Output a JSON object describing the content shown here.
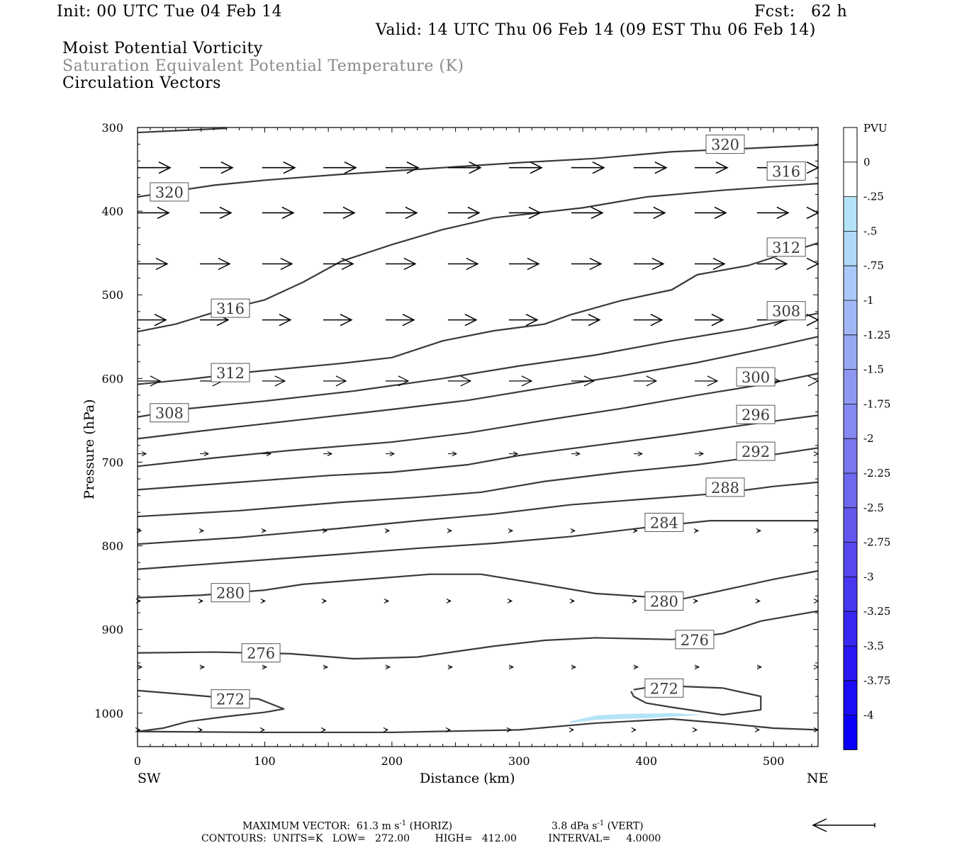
{
  "header": {
    "init": "Init: 00 UTC Tue 04 Feb 14",
    "fcst": "Fcst:   62 h",
    "valid": "Valid: 14 UTC Thu 06 Feb 14 (09 EST Thu 06 Feb 14)",
    "line1": "Moist Potential Vorticity",
    "line2": "Saturation Equivalent Potential Temperature (K)",
    "line3": "Circulation Vectors"
  },
  "colorbar": {
    "title": "PVU",
    "labels": [
      "0",
      "-.25",
      "-.5",
      "-.75",
      "-1",
      "-1.25",
      "-1.5",
      "-1.75",
      "-2",
      "-2.25",
      "-2.5",
      "-2.75",
      "-3",
      "-3.25",
      "-3.5",
      "-3.75",
      "-4"
    ],
    "colors": [
      "#ffffff",
      "#ffffff",
      "#b4e4f8",
      "#b0d8f8",
      "#aac8f8",
      "#a2b8f6",
      "#98a8f4",
      "#8e98f2",
      "#8488f0",
      "#7a78ee",
      "#6e68ee",
      "#6258ee",
      "#5448ee",
      "#4638f0",
      "#3828f2",
      "#2a18f4",
      "#1a0cf6",
      "#0a00f8"
    ]
  },
  "footer": {
    "max_vector": "MAXIMUM VECTOR:  61.3 m s",
    "max_vector_exp": "-1",
    "max_vector_horiz": " (HORIZ)",
    "vert": "3.8 dPa s",
    "vert_exp": "-1",
    "vert_tail": " (VERT)",
    "contours": "CONTOURS:  UNITS=K   LOW=   272.00        HIGH=   412.00          INTERVAL=     4.0000"
  },
  "chart_data": {
    "type": "line",
    "xlabel": "Distance (km)",
    "ylabel": "Pressure (hPa)",
    "xlim": [
      0,
      535
    ],
    "ylim": [
      300,
      1040
    ],
    "y_scale": "linear (inverted)",
    "x_ticks": [
      0,
      100,
      200,
      300,
      400,
      500
    ],
    "y_ticks": [
      300,
      400,
      500,
      600,
      700,
      800,
      900,
      1000
    ],
    "x_tick_labels": [
      "0",
      "100",
      "200",
      "300",
      "400",
      "500"
    ],
    "y_tick_labels": [
      "300",
      "400",
      "500",
      "600",
      "700",
      "800",
      "900",
      "1000"
    ],
    "left_end_label": "SW",
    "right_end_label": "NE",
    "grid": false,
    "contours": [
      {
        "level": 320,
        "points": [
          [
            0,
            306
          ],
          [
            70,
            301
          ]
        ]
      },
      {
        "level": 320,
        "points": [
          [
            0,
            383
          ],
          [
            25,
            377
          ],
          [
            60,
            369
          ],
          [
            100,
            363
          ],
          [
            160,
            356
          ],
          [
            230,
            349
          ],
          [
            300,
            342
          ],
          [
            360,
            337
          ],
          [
            420,
            329
          ],
          [
            480,
            325
          ],
          [
            535,
            321
          ]
        ]
      },
      {
        "level": 316,
        "points": [
          [
            0,
            544
          ],
          [
            30,
            535
          ],
          [
            60,
            521
          ],
          [
            100,
            506
          ],
          [
            130,
            485
          ],
          [
            160,
            460
          ],
          [
            200,
            440
          ],
          [
            240,
            422
          ],
          [
            280,
            408
          ],
          [
            350,
            396
          ],
          [
            400,
            383
          ],
          [
            460,
            375
          ],
          [
            535,
            367
          ]
        ]
      },
      {
        "level": 312,
        "points": [
          [
            0,
            607
          ],
          [
            40,
            601
          ],
          [
            90,
            592
          ],
          [
            160,
            582
          ],
          [
            200,
            575
          ],
          [
            240,
            555
          ],
          [
            280,
            543
          ],
          [
            320,
            535
          ],
          [
            340,
            524
          ],
          [
            380,
            507
          ],
          [
            420,
            494
          ],
          [
            440,
            476
          ],
          [
            480,
            465
          ],
          [
            535,
            438
          ]
        ]
      },
      {
        "level": 308,
        "points": [
          [
            0,
            646
          ],
          [
            40,
            636
          ],
          [
            100,
            627
          ],
          [
            170,
            615
          ],
          [
            240,
            600
          ],
          [
            300,
            585
          ],
          [
            360,
            572
          ],
          [
            420,
            555
          ],
          [
            480,
            540
          ],
          [
            535,
            522
          ]
        ]
      },
      {
        "level": 304,
        "points": [
          [
            0,
            672
          ],
          [
            60,
            661
          ],
          [
            130,
            649
          ],
          [
            200,
            637
          ],
          [
            260,
            626
          ],
          [
            320,
            611
          ],
          [
            380,
            597
          ],
          [
            440,
            581
          ],
          [
            500,
            562
          ],
          [
            535,
            550
          ]
        ]
      },
      {
        "level": 300,
        "points": [
          [
            0,
            705
          ],
          [
            60,
            695
          ],
          [
            120,
            686
          ],
          [
            200,
            676
          ],
          [
            260,
            665
          ],
          [
            320,
            650
          ],
          [
            380,
            636
          ],
          [
            440,
            620
          ],
          [
            500,
            605
          ],
          [
            535,
            594
          ]
        ]
      },
      {
        "level": 296,
        "points": [
          [
            0,
            733
          ],
          [
            80,
            724
          ],
          [
            150,
            716
          ],
          [
            200,
            712
          ],
          [
            260,
            703
          ],
          [
            300,
            692
          ],
          [
            360,
            680
          ],
          [
            420,
            668
          ],
          [
            480,
            655
          ],
          [
            535,
            644
          ]
        ]
      },
      {
        "level": 292,
        "points": [
          [
            0,
            765
          ],
          [
            80,
            758
          ],
          [
            160,
            748
          ],
          [
            220,
            742
          ],
          [
            270,
            736
          ],
          [
            320,
            723
          ],
          [
            380,
            712
          ],
          [
            440,
            703
          ],
          [
            500,
            691
          ],
          [
            535,
            683
          ]
        ]
      },
      {
        "level": 288,
        "points": [
          [
            0,
            798
          ],
          [
            80,
            790
          ],
          [
            160,
            779
          ],
          [
            220,
            770
          ],
          [
            280,
            762
          ],
          [
            340,
            751
          ],
          [
            400,
            744
          ],
          [
            460,
            737
          ],
          [
            500,
            729
          ],
          [
            535,
            724
          ]
        ]
      },
      {
        "level": 284,
        "points": [
          [
            0,
            828
          ],
          [
            80,
            819
          ],
          [
            160,
            810
          ],
          [
            220,
            803
          ],
          [
            280,
            797
          ],
          [
            340,
            789
          ],
          [
            400,
            778
          ],
          [
            450,
            770
          ],
          [
            535,
            770
          ]
        ]
      },
      {
        "level": 280,
        "points": [
          [
            0,
            862
          ],
          [
            50,
            859
          ],
          [
            100,
            853
          ],
          [
            130,
            846
          ],
          [
            180,
            840
          ],
          [
            230,
            834
          ],
          [
            270,
            834
          ],
          [
            310,
            844
          ],
          [
            360,
            857
          ],
          [
            400,
            861
          ],
          [
            430,
            863
          ],
          [
            470,
            850
          ],
          [
            500,
            840
          ],
          [
            535,
            830
          ]
        ]
      },
      {
        "level": 276,
        "points": [
          [
            0,
            928
          ],
          [
            60,
            927
          ],
          [
            120,
            929
          ],
          [
            170,
            935
          ],
          [
            220,
            933
          ],
          [
            280,
            920
          ],
          [
            320,
            913
          ],
          [
            360,
            910
          ],
          [
            420,
            912
          ],
          [
            460,
            905
          ],
          [
            490,
            890
          ],
          [
            535,
            878
          ]
        ]
      },
      {
        "level": 272,
        "points": [
          [
            0,
            973
          ],
          [
            40,
            978
          ],
          [
            70,
            982
          ],
          [
            95,
            983
          ],
          [
            115,
            995
          ],
          [
            100,
            999
          ],
          [
            70,
            1004
          ],
          [
            40,
            1010
          ],
          [
            20,
            1018
          ],
          [
            0,
            1022
          ]
        ]
      },
      {
        "level": 272,
        "points": [
          [
            390,
            972
          ],
          [
            410,
            967
          ],
          [
            460,
            970
          ],
          [
            490,
            980
          ],
          [
            490,
            996
          ],
          [
            460,
            1002
          ],
          [
            420,
            993
          ],
          [
            400,
            988
          ],
          [
            390,
            980
          ],
          [
            388,
            974
          ]
        ]
      },
      {
        "level": 0,
        "points": [
          [
            0,
            1022
          ],
          [
            100,
            1023
          ],
          [
            200,
            1023
          ],
          [
            300,
            1020
          ],
          [
            360,
            1012
          ],
          [
            420,
            1007
          ],
          [
            460,
            1012
          ],
          [
            500,
            1018
          ],
          [
            535,
            1020
          ]
        ]
      }
    ],
    "contour_labels": [
      {
        "text": "320",
        "x": 25,
        "p": 377
      },
      {
        "text": "320",
        "x": 462,
        "p": 320
      },
      {
        "text": "316",
        "x": 510,
        "p": 352
      },
      {
        "text": "316",
        "x": 73,
        "p": 516
      },
      {
        "text": "312",
        "x": 510,
        "p": 443
      },
      {
        "text": "312",
        "x": 73,
        "p": 593
      },
      {
        "text": "308",
        "x": 510,
        "p": 519
      },
      {
        "text": "308",
        "x": 25,
        "p": 641
      },
      {
        "text": "300",
        "x": 486,
        "p": 598
      },
      {
        "text": "296",
        "x": 486,
        "p": 643
      },
      {
        "text": "292",
        "x": 486,
        "p": 687
      },
      {
        "text": "288",
        "x": 462,
        "p": 730
      },
      {
        "text": "284",
        "x": 414,
        "p": 772
      },
      {
        "text": "280",
        "x": 73,
        "p": 856
      },
      {
        "text": "280",
        "x": 414,
        "p": 866
      },
      {
        "text": "276",
        "x": 97,
        "p": 928
      },
      {
        "text": "276",
        "x": 438,
        "p": 912
      },
      {
        "text": "272",
        "x": 73,
        "p": 983
      },
      {
        "text": "272",
        "x": 414,
        "p": 970
      }
    ],
    "negative_pv_region": {
      "level": -0.25,
      "points": [
        [
          340,
          1010
        ],
        [
          360,
          1003
        ],
        [
          380,
          1001
        ],
        [
          420,
          1000
        ],
        [
          445,
          1002
        ],
        [
          400,
          1006
        ],
        [
          360,
          1008
        ],
        [
          340,
          1012
        ]
      ]
    },
    "vector_rows": [
      {
        "p": 348,
        "xs": [
          0,
          49,
          98,
          146,
          195,
          244,
          292,
          341,
          390,
          438,
          487,
          535
        ],
        "len": 46,
        "w": 1.6
      },
      {
        "p": 402,
        "xs": [
          0,
          49,
          98,
          146,
          195,
          244,
          292,
          341,
          390,
          438,
          487,
          535
        ],
        "len": 44,
        "w": 1.6
      },
      {
        "p": 463,
        "xs": [
          0,
          49,
          98,
          146,
          195,
          244,
          292,
          341,
          390,
          438,
          487,
          535
        ],
        "len": 42,
        "w": 1.5
      },
      {
        "p": 530,
        "xs": [
          0,
          49,
          98,
          146,
          195,
          244,
          292,
          341,
          390,
          438,
          487,
          535
        ],
        "len": 40,
        "w": 1.5
      },
      {
        "p": 603,
        "xs": [
          0,
          49,
          98,
          146,
          195,
          244,
          292,
          341,
          390,
          438,
          487,
          535
        ],
        "len": 32,
        "w": 1.2
      },
      {
        "p": 690,
        "xs": [
          0,
          49,
          98,
          146,
          195,
          244,
          292,
          341,
          390,
          438,
          487,
          535
        ],
        "len": 12,
        "w": 1.0
      },
      {
        "p": 782,
        "xs": [
          0,
          49,
          98,
          146,
          195,
          244,
          292,
          341,
          390,
          438,
          487,
          535
        ],
        "len": 5,
        "w": 1.0
      },
      {
        "p": 866,
        "xs": [
          0,
          49,
          98,
          146,
          195,
          244,
          292,
          341,
          390,
          438,
          487,
          535
        ],
        "len": 4,
        "w": 1.0
      },
      {
        "p": 945,
        "xs": [
          0,
          49,
          98,
          146,
          195,
          244,
          292,
          341,
          390,
          438,
          487,
          535
        ],
        "len": 6,
        "w": 1.0
      },
      {
        "p": 1020,
        "xs": [
          0,
          49,
          98,
          146,
          195,
          244,
          292,
          341,
          390,
          438,
          487,
          535
        ],
        "len": 3,
        "w": 1.0
      }
    ]
  }
}
